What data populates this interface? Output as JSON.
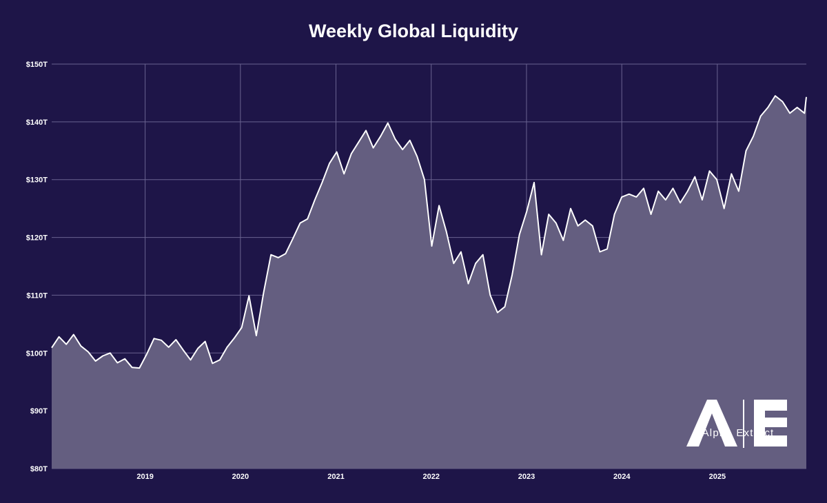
{
  "chart_data": {
    "type": "area",
    "title": "Weekly Global Liquidity",
    "xlabel": "",
    "ylabel": "",
    "ylim": [
      80,
      150
    ],
    "xlim": [
      "2018-01-08",
      "2025-12-08"
    ],
    "y_ticks": [
      "$80T",
      "$90T",
      "$100T",
      "$110T",
      "$120T",
      "$130T",
      "$140T",
      "$150T"
    ],
    "y_tick_values": [
      80,
      90,
      100,
      110,
      120,
      130,
      140,
      150
    ],
    "x_ticks": [
      "2019",
      "2020",
      "2021",
      "2022",
      "2023",
      "2024",
      "2025"
    ],
    "x_tick_dates": [
      "2019-01-01",
      "2020-01-01",
      "2021-01-01",
      "2022-01-01",
      "2023-01-01",
      "2024-01-01",
      "2025-01-01"
    ],
    "grid": true,
    "legend": "none",
    "colors": {
      "background": "#1e1548",
      "area_fill": "#645e80",
      "line": "#ffffff",
      "grid": "#6a6390"
    },
    "series": [
      {
        "x": [
          "2018-01-08",
          "2018-02-05",
          "2018-03-05",
          "2018-04-02",
          "2018-04-30",
          "2018-05-28",
          "2018-06-25",
          "2018-07-23",
          "2018-08-20",
          "2018-09-17",
          "2018-10-15",
          "2018-11-12",
          "2018-12-10",
          "2019-01-07",
          "2019-02-04",
          "2019-03-04",
          "2019-04-01",
          "2019-04-29",
          "2019-05-27",
          "2019-06-24",
          "2019-07-22",
          "2019-08-19",
          "2019-09-16",
          "2019-10-14",
          "2019-11-11",
          "2019-12-09",
          "2020-01-06",
          "2020-02-03",
          "2020-03-02",
          "2020-03-30",
          "2020-04-27",
          "2020-05-25",
          "2020-06-22",
          "2020-07-20",
          "2020-08-17",
          "2020-09-14",
          "2020-10-12",
          "2020-11-09",
          "2020-12-07",
          "2021-01-04",
          "2021-02-01",
          "2021-03-01",
          "2021-03-29",
          "2021-04-26",
          "2021-05-24",
          "2021-06-21",
          "2021-07-19",
          "2021-08-16",
          "2021-09-13",
          "2021-10-11",
          "2021-11-08",
          "2021-12-06",
          "2022-01-03",
          "2022-01-31",
          "2022-02-28",
          "2022-03-28",
          "2022-04-25",
          "2022-05-23",
          "2022-06-20",
          "2022-07-18",
          "2022-08-15",
          "2022-09-12",
          "2022-10-10",
          "2022-11-07",
          "2022-12-05",
          "2023-01-02",
          "2023-01-30",
          "2023-02-27",
          "2023-03-27",
          "2023-04-24",
          "2023-05-22",
          "2023-06-19",
          "2023-07-17",
          "2023-08-14",
          "2023-09-11",
          "2023-10-09",
          "2023-11-06",
          "2023-12-04",
          "2024-01-01",
          "2024-01-29",
          "2024-02-26",
          "2024-03-25",
          "2024-04-22",
          "2024-05-20",
          "2024-06-17",
          "2024-07-15",
          "2024-08-12",
          "2024-09-09",
          "2024-10-07",
          "2024-11-04",
          "2024-12-02",
          "2024-12-30",
          "2025-01-27",
          "2025-02-24",
          "2025-03-24",
          "2025-04-21",
          "2025-05-19",
          "2025-06-16",
          "2025-07-14",
          "2025-08-11",
          "2025-09-08",
          "2025-10-06",
          "2025-11-03",
          "2025-12-01",
          "2025-12-08"
        ],
        "values": [
          100.9,
          102.8,
          101.5,
          103.2,
          101.2,
          100.2,
          98.6,
          99.5,
          100.0,
          98.3,
          99.0,
          97.5,
          97.4,
          99.8,
          102.5,
          102.2,
          101.0,
          102.3,
          100.5,
          98.8,
          100.8,
          102.0,
          98.2,
          98.8,
          101.0,
          102.6,
          104.4,
          109.9,
          103.0,
          110.5,
          117.0,
          116.5,
          117.2,
          119.8,
          122.5,
          123.2,
          126.5,
          129.5,
          132.8,
          134.8,
          131.0,
          134.5,
          136.5,
          138.5,
          135.5,
          137.5,
          139.8,
          137.0,
          135.2,
          136.8,
          134.0,
          130.0,
          118.5,
          125.5,
          121.0,
          115.5,
          117.5,
          112.0,
          115.5,
          117.0,
          110.0,
          107.0,
          108.0,
          113.5,
          120.5,
          124.5,
          129.5,
          117.0,
          124.0,
          122.5,
          119.5,
          125.0,
          122.0,
          123.0,
          122.0,
          117.5,
          118.0,
          124.0,
          127.0,
          127.5,
          127.0,
          128.5,
          124.0,
          128.0,
          126.5,
          128.5,
          126.0,
          128.0,
          130.5,
          126.5,
          131.5,
          130.0,
          125.0,
          131.0,
          128.0,
          135.0,
          137.5,
          141.0,
          142.5,
          144.5,
          143.5,
          141.5,
          142.5,
          141.5,
          144.3
        ]
      }
    ]
  },
  "watermark": {
    "brand_text": "Alpha Extract",
    "logo_letters": "AE"
  }
}
